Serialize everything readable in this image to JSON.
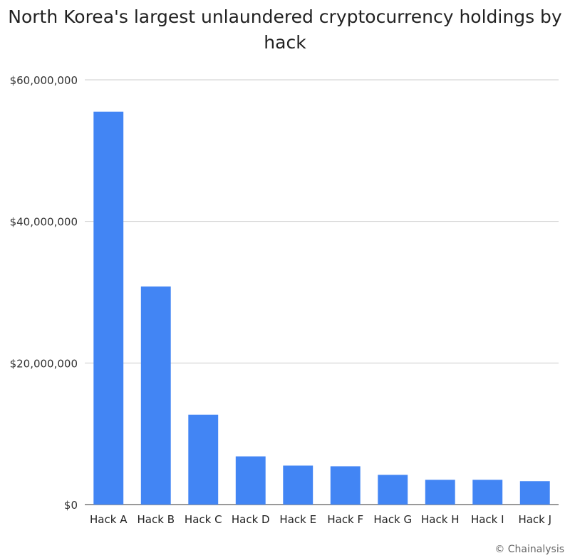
{
  "chart_data": {
    "type": "bar",
    "title": "North Korea's largest unlaundered cryptocurrency holdings by hack",
    "xlabel": "",
    "ylabel": "",
    "categories": [
      "Hack A",
      "Hack B",
      "Hack C",
      "Hack D",
      "Hack E",
      "Hack F",
      "Hack G",
      "Hack H",
      "Hack I",
      "Hack J"
    ],
    "values": [
      55500000,
      30800000,
      12700000,
      6800000,
      5500000,
      5400000,
      4200000,
      3500000,
      3500000,
      3300000
    ],
    "ylim": [
      0,
      60000000
    ],
    "y_ticks": [
      0,
      20000000,
      40000000,
      60000000
    ],
    "y_tick_labels": [
      "$0",
      "$20,000,000",
      "$40,000,000",
      "$60,000,000"
    ],
    "grid": true,
    "legend": "none",
    "bar_color": "#4285f4",
    "grid_color": "#cccccc"
  },
  "credit": "© Chainalysis"
}
